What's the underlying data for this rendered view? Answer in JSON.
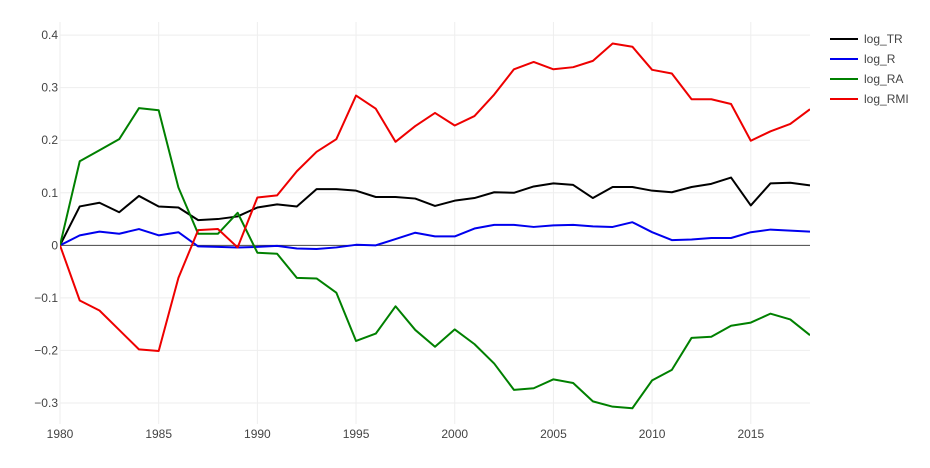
{
  "chart_data": {
    "type": "line",
    "x": [
      1980,
      1981,
      1982,
      1983,
      1984,
      1985,
      1986,
      1987,
      1988,
      1989,
      1990,
      1991,
      1992,
      1993,
      1994,
      1995,
      1996,
      1997,
      1998,
      1999,
      2000,
      2001,
      2002,
      2003,
      2004,
      2005,
      2006,
      2007,
      2008,
      2009,
      2010,
      2011,
      2012,
      2013,
      2014,
      2015,
      2016,
      2017,
      2018
    ],
    "series": [
      {
        "name": "log_TR",
        "color": "#000000",
        "values": [
          0.0,
          0.074,
          0.081,
          0.063,
          0.094,
          0.074,
          0.072,
          0.048,
          0.05,
          0.055,
          0.072,
          0.078,
          0.074,
          0.107,
          0.107,
          0.104,
          0.092,
          0.092,
          0.089,
          0.075,
          0.085,
          0.09,
          0.101,
          0.1,
          0.112,
          0.118,
          0.115,
          0.09,
          0.111,
          0.111,
          0.104,
          0.101,
          0.111,
          0.117,
          0.129,
          0.076,
          0.118,
          0.119,
          0.114
        ]
      },
      {
        "name": "log_R",
        "color": "#0000ee",
        "values": [
          0.0,
          0.019,
          0.026,
          0.022,
          0.031,
          0.019,
          0.025,
          -0.002,
          -0.003,
          -0.004,
          -0.003,
          -0.001,
          -0.006,
          -0.007,
          -0.004,
          0.001,
          0.0,
          0.012,
          0.024,
          0.017,
          0.017,
          0.032,
          0.039,
          0.039,
          0.035,
          0.038,
          0.039,
          0.036,
          0.035,
          0.044,
          0.025,
          0.01,
          0.011,
          0.014,
          0.014,
          0.025,
          0.03,
          0.028,
          0.026
        ]
      },
      {
        "name": "log_RA",
        "color": "#008000",
        "values": [
          0.0,
          0.16,
          0.181,
          0.202,
          0.261,
          0.257,
          0.11,
          0.022,
          0.022,
          0.062,
          -0.014,
          -0.016,
          -0.062,
          -0.063,
          -0.09,
          -0.182,
          -0.168,
          -0.116,
          -0.161,
          -0.193,
          -0.16,
          -0.188,
          -0.225,
          -0.275,
          -0.272,
          -0.255,
          -0.262,
          -0.297,
          -0.307,
          -0.31,
          -0.257,
          -0.237,
          -0.176,
          -0.174,
          -0.153,
          -0.147,
          -0.13,
          -0.141,
          -0.171
        ]
      },
      {
        "name": "log_RMI",
        "color": "#ee0000",
        "values": [
          0.0,
          -0.105,
          -0.124,
          -0.161,
          -0.198,
          -0.201,
          -0.062,
          0.029,
          0.031,
          -0.004,
          0.091,
          0.095,
          0.141,
          0.178,
          0.202,
          0.285,
          0.26,
          0.197,
          0.227,
          0.252,
          0.228,
          0.246,
          0.287,
          0.335,
          0.349,
          0.335,
          0.339,
          0.351,
          0.384,
          0.378,
          0.334,
          0.327,
          0.278,
          0.278,
          0.269,
          0.199,
          0.217,
          0.231,
          0.259
        ]
      }
    ],
    "xlim": [
      1980,
      2018
    ],
    "ylim": [
      -0.34,
      0.425
    ],
    "x_ticks": [
      1980,
      1985,
      1990,
      1995,
      2000,
      2005,
      2010,
      2015
    ],
    "x_tick_labels": [
      "1980",
      "1985",
      "1990",
      "1995",
      "2000",
      "2005",
      "2010",
      "2015"
    ],
    "y_ticks": [
      -0.3,
      -0.2,
      -0.1,
      0,
      0.1,
      0.2,
      0.3,
      0.4
    ],
    "y_tick_labels": [
      "−0.3",
      "−0.2",
      "−0.1",
      "0",
      "0.1",
      "0.2",
      "0.3",
      "0.4"
    ],
    "grid": true,
    "zero_line": true,
    "legend_position": "top-right"
  }
}
